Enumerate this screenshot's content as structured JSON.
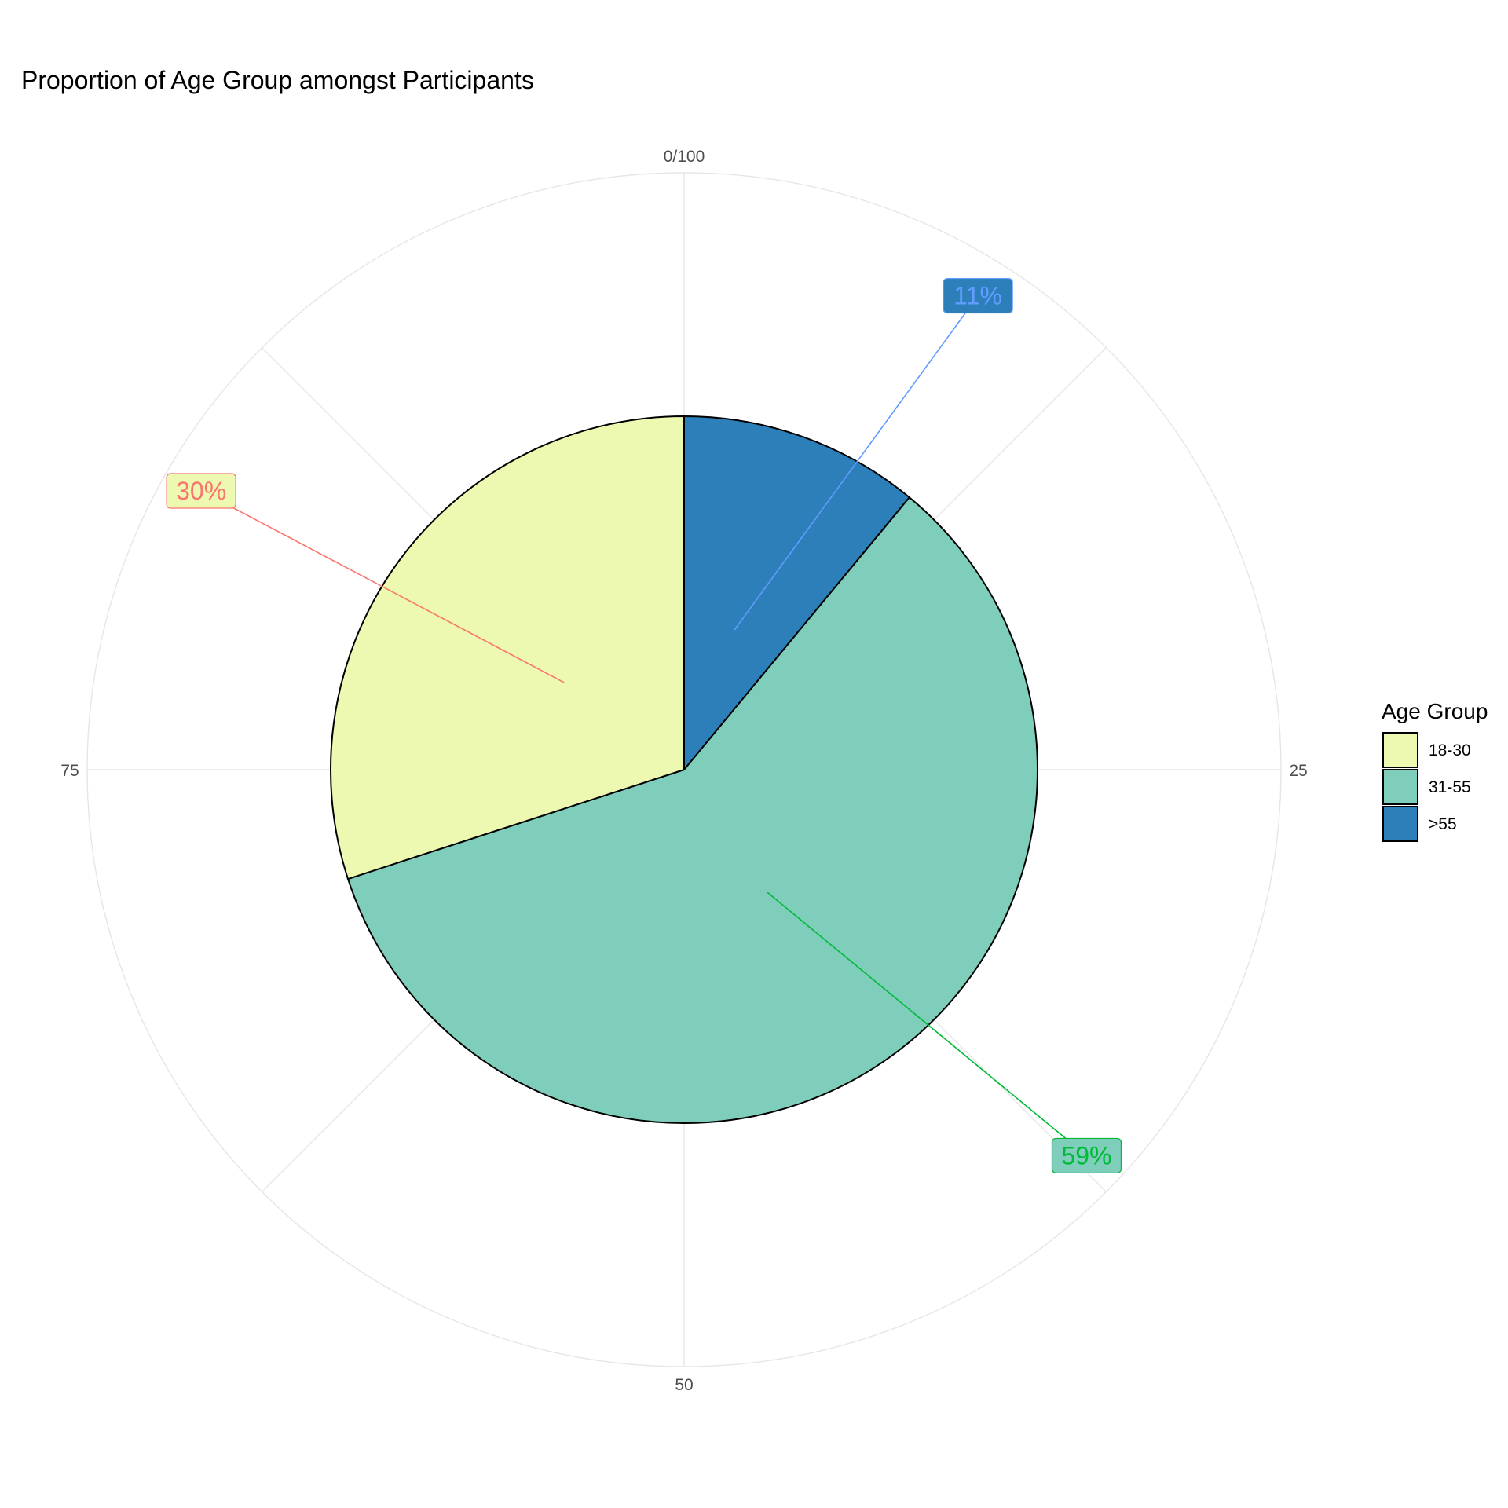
{
  "chart_data": {
    "type": "pie",
    "title": "Proportion of Age Group amongst Participants",
    "xlabel": "",
    "ylabel": "",
    "theta_ticks": [
      {
        "value": 0,
        "label": "0/100"
      },
      {
        "value": 25,
        "label": "25"
      },
      {
        "value": 50,
        "label": "50"
      },
      {
        "value": 75,
        "label": "75"
      }
    ],
    "grid": true,
    "legend": {
      "title": "Age Group",
      "placement": "right"
    },
    "slices": [
      {
        "category": "18-30",
        "value": 30,
        "label": "30%",
        "color": "#edf8b1",
        "label_color": "#f8766d"
      },
      {
        "category": "31-55",
        "value": 59,
        "label": "59%",
        "color": "#7fcdbb",
        "label_color": "#00ba38"
      },
      {
        "category": ">55",
        "value": 11,
        "label": "11%",
        "color": "#2c7fb8",
        "label_color": "#619cff"
      }
    ],
    "stack_order": [
      ">55",
      "31-55",
      "18-30"
    ]
  }
}
